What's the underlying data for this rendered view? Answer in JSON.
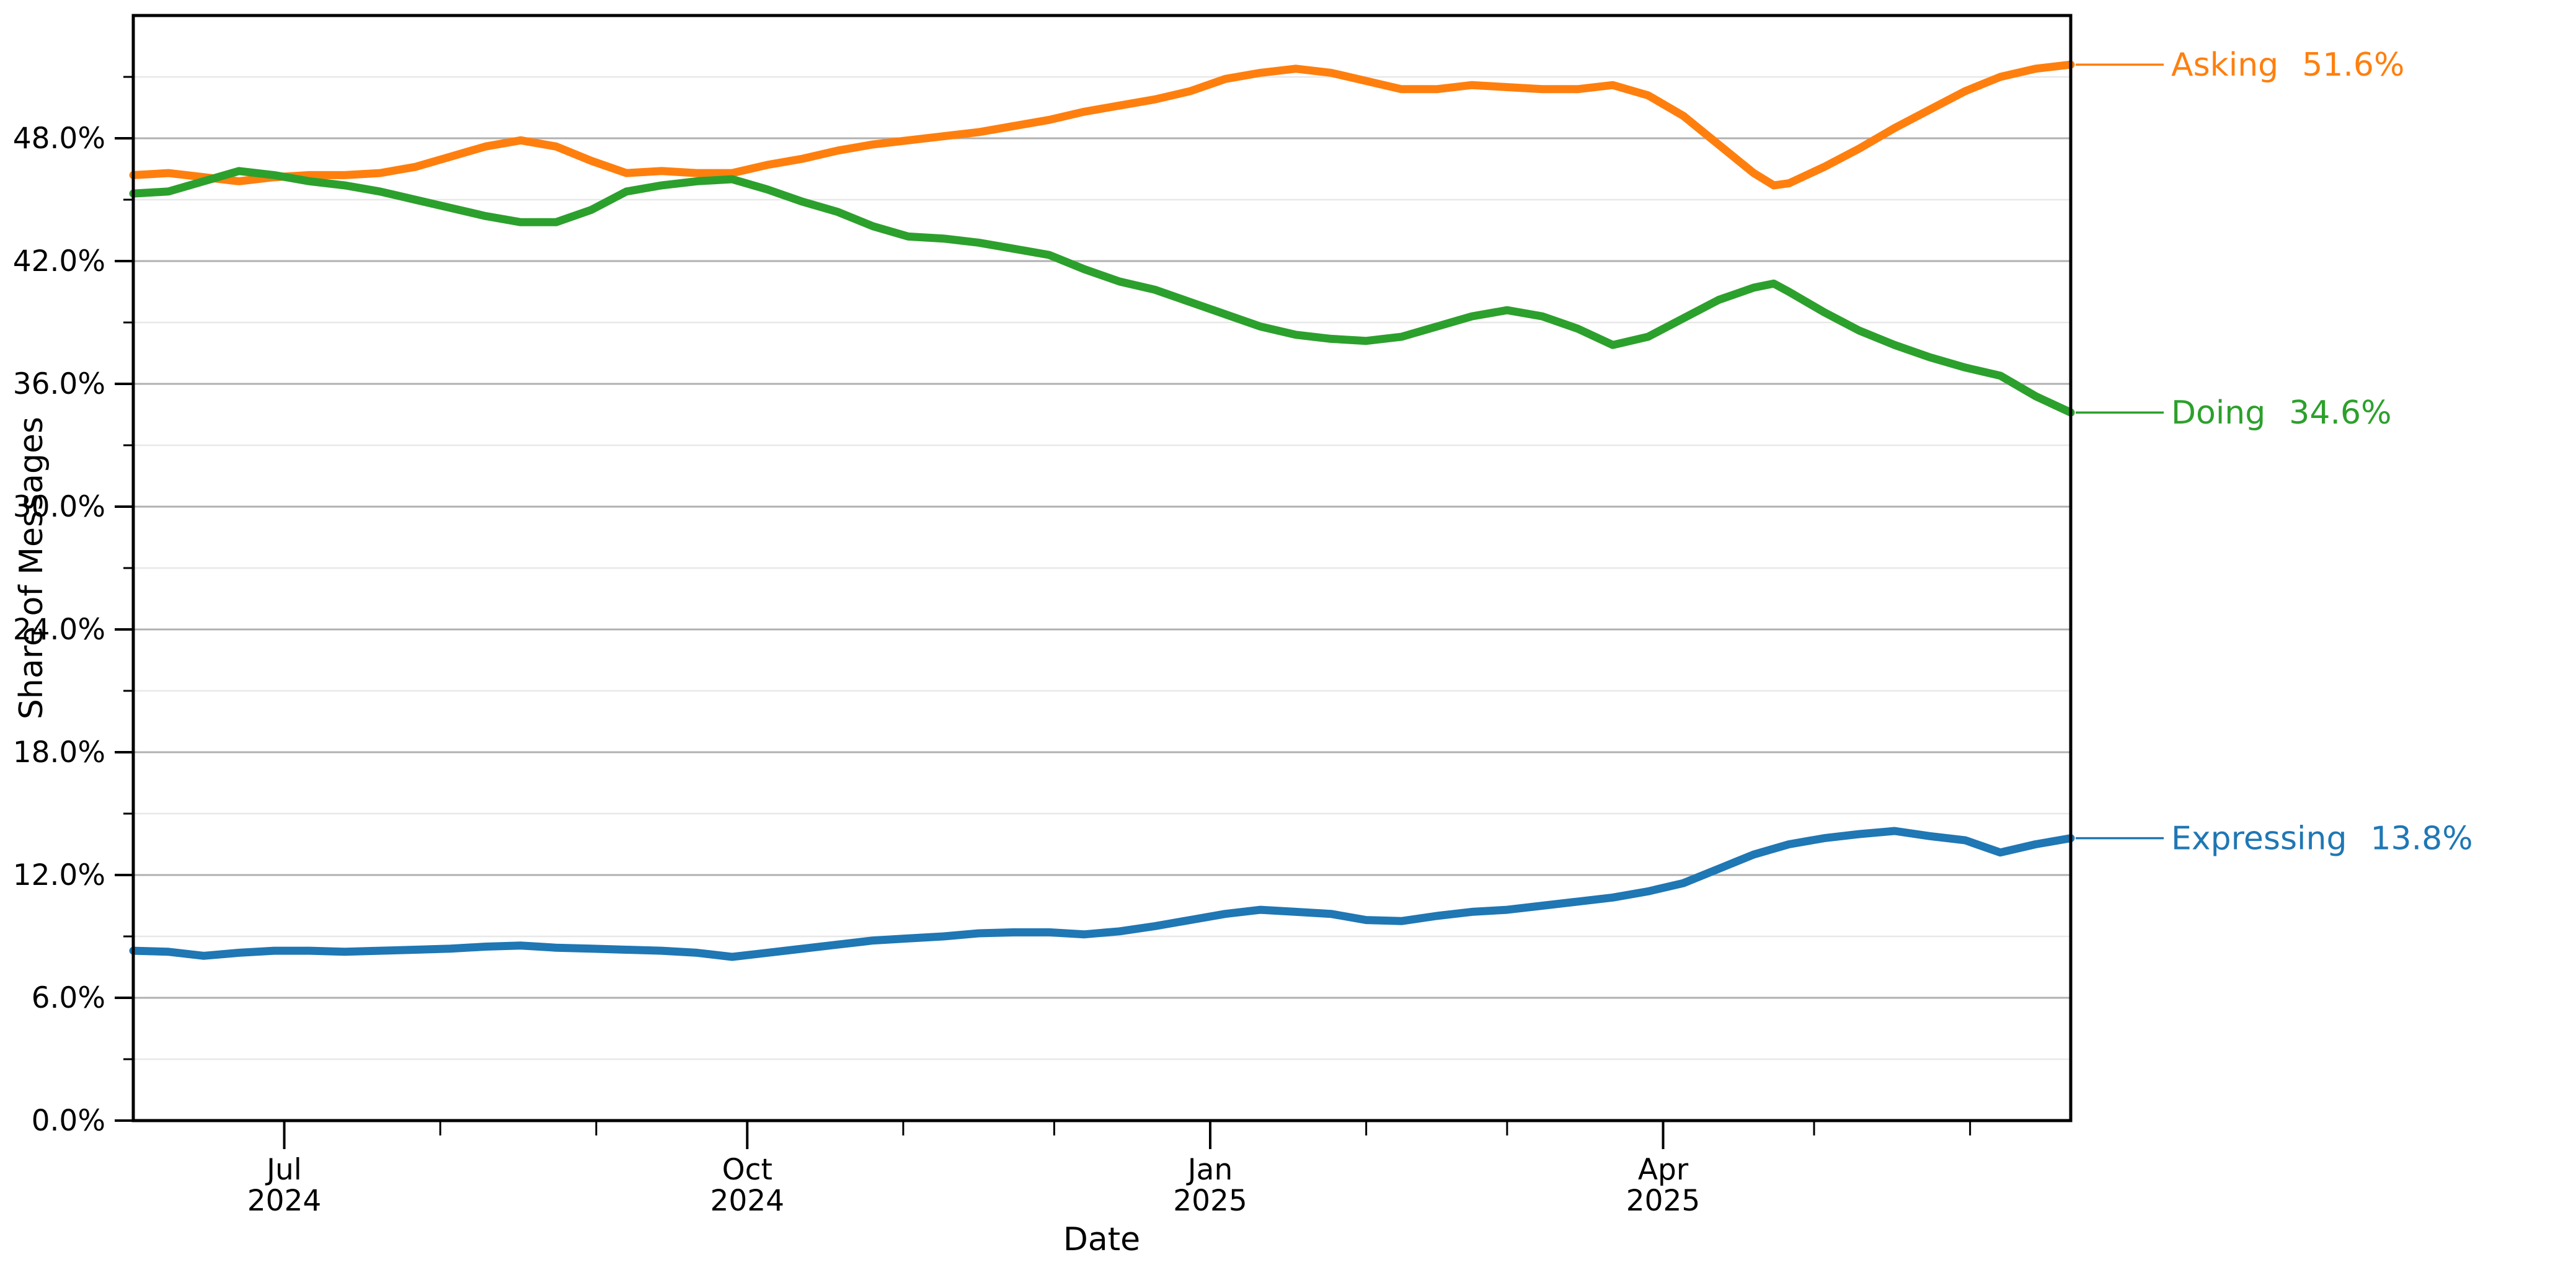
{
  "chart_data": {
    "type": "line",
    "title": "",
    "xlabel": "Date",
    "ylabel": "Share of Messages",
    "ylim": [
      0,
      54
    ],
    "x_domain": [
      "2024-06-01",
      "2025-06-21"
    ],
    "grid": "horizontal-only, major and minor",
    "legend_position": "right-edge-annotations",
    "y_major_ticks": {
      "values": [
        0,
        6,
        12,
        18,
        24,
        30,
        36,
        42,
        48
      ],
      "labels": [
        "0.0%",
        "6.0%",
        "12.0%",
        "18.0%",
        "24.0%",
        "30.0%",
        "36.0%",
        "42.0%",
        "48.0%"
      ]
    },
    "y_minor_ticks": [
      3,
      9,
      15,
      21,
      27,
      33,
      39,
      45,
      51
    ],
    "x_major_ticks": [
      {
        "date": "2024-07-01",
        "line1": "Jul",
        "line2": "2024"
      },
      {
        "date": "2024-10-01",
        "line1": "Oct",
        "line2": "2024"
      },
      {
        "date": "2025-01-01",
        "line1": "Jan",
        "line2": "2025"
      },
      {
        "date": "2025-04-01",
        "line1": "Apr",
        "line2": "2025"
      }
    ],
    "x_minor_ticks": [
      "2024-08-01",
      "2024-09-01",
      "2024-11-01",
      "2024-12-01",
      "2025-02-01",
      "2025-03-01",
      "2025-05-01",
      "2025-06-01"
    ],
    "series": [
      {
        "name": "Asking",
        "end_label": "51.6%",
        "color": "#ff7f0e",
        "points": [
          [
            "2024-06-01",
            46.2
          ],
          [
            "2024-06-08",
            46.3
          ],
          [
            "2024-06-15",
            46.1
          ],
          [
            "2024-06-22",
            45.9
          ],
          [
            "2024-06-29",
            46.1
          ],
          [
            "2024-07-06",
            46.2
          ],
          [
            "2024-07-13",
            46.2
          ],
          [
            "2024-07-20",
            46.3
          ],
          [
            "2024-07-27",
            46.6
          ],
          [
            "2024-08-03",
            47.1
          ],
          [
            "2024-08-10",
            47.6
          ],
          [
            "2024-08-17",
            47.9
          ],
          [
            "2024-08-24",
            47.6
          ],
          [
            "2024-08-31",
            46.9
          ],
          [
            "2024-09-07",
            46.3
          ],
          [
            "2024-09-14",
            46.4
          ],
          [
            "2024-09-21",
            46.3
          ],
          [
            "2024-09-28",
            46.3
          ],
          [
            "2024-10-05",
            46.7
          ],
          [
            "2024-10-12",
            47.0
          ],
          [
            "2024-10-19",
            47.4
          ],
          [
            "2024-10-26",
            47.7
          ],
          [
            "2024-11-02",
            47.9
          ],
          [
            "2024-11-09",
            48.1
          ],
          [
            "2024-11-16",
            48.3
          ],
          [
            "2024-11-23",
            48.6
          ],
          [
            "2024-11-30",
            48.9
          ],
          [
            "2024-12-07",
            49.3
          ],
          [
            "2024-12-14",
            49.6
          ],
          [
            "2024-12-21",
            49.9
          ],
          [
            "2024-12-28",
            50.3
          ],
          [
            "2025-01-04",
            50.9
          ],
          [
            "2025-01-11",
            51.2
          ],
          [
            "2025-01-18",
            51.4
          ],
          [
            "2025-01-25",
            51.2
          ],
          [
            "2025-02-01",
            50.8
          ],
          [
            "2025-02-08",
            50.4
          ],
          [
            "2025-02-15",
            50.4
          ],
          [
            "2025-02-22",
            50.6
          ],
          [
            "2025-03-01",
            50.5
          ],
          [
            "2025-03-08",
            50.4
          ],
          [
            "2025-03-15",
            50.4
          ],
          [
            "2025-03-22",
            50.6
          ],
          [
            "2025-03-29",
            50.1
          ],
          [
            "2025-04-05",
            49.1
          ],
          [
            "2025-04-12",
            47.7
          ],
          [
            "2025-04-19",
            46.3
          ],
          [
            "2025-04-23",
            45.7
          ],
          [
            "2025-04-26",
            45.8
          ],
          [
            "2025-05-03",
            46.6
          ],
          [
            "2025-05-10",
            47.5
          ],
          [
            "2025-05-17",
            48.5
          ],
          [
            "2025-05-24",
            49.4
          ],
          [
            "2025-05-31",
            50.3
          ],
          [
            "2025-06-07",
            51.0
          ],
          [
            "2025-06-14",
            51.4
          ],
          [
            "2025-06-21",
            51.6
          ]
        ]
      },
      {
        "name": "Doing",
        "end_label": "34.6%",
        "color": "#2ca02c",
        "points": [
          [
            "2024-06-01",
            45.3
          ],
          [
            "2024-06-08",
            45.4
          ],
          [
            "2024-06-15",
            45.9
          ],
          [
            "2024-06-22",
            46.4
          ],
          [
            "2024-06-29",
            46.2
          ],
          [
            "2024-07-06",
            45.9
          ],
          [
            "2024-07-13",
            45.7
          ],
          [
            "2024-07-20",
            45.4
          ],
          [
            "2024-07-27",
            45.0
          ],
          [
            "2024-08-03",
            44.6
          ],
          [
            "2024-08-10",
            44.2
          ],
          [
            "2024-08-17",
            43.9
          ],
          [
            "2024-08-24",
            43.9
          ],
          [
            "2024-08-31",
            44.5
          ],
          [
            "2024-09-07",
            45.4
          ],
          [
            "2024-09-14",
            45.7
          ],
          [
            "2024-09-21",
            45.9
          ],
          [
            "2024-09-28",
            46.0
          ],
          [
            "2024-10-05",
            45.5
          ],
          [
            "2024-10-12",
            44.9
          ],
          [
            "2024-10-19",
            44.4
          ],
          [
            "2024-10-26",
            43.7
          ],
          [
            "2024-11-02",
            43.2
          ],
          [
            "2024-11-09",
            43.1
          ],
          [
            "2024-11-16",
            42.9
          ],
          [
            "2024-11-23",
            42.6
          ],
          [
            "2024-11-30",
            42.3
          ],
          [
            "2024-12-07",
            41.6
          ],
          [
            "2024-12-14",
            41.0
          ],
          [
            "2024-12-21",
            40.6
          ],
          [
            "2024-12-28",
            40.0
          ],
          [
            "2025-01-04",
            39.4
          ],
          [
            "2025-01-11",
            38.8
          ],
          [
            "2025-01-18",
            38.4
          ],
          [
            "2025-01-25",
            38.2
          ],
          [
            "2025-02-01",
            38.1
          ],
          [
            "2025-02-08",
            38.3
          ],
          [
            "2025-02-15",
            38.8
          ],
          [
            "2025-02-22",
            39.3
          ],
          [
            "2025-03-01",
            39.6
          ],
          [
            "2025-03-08",
            39.3
          ],
          [
            "2025-03-15",
            38.7
          ],
          [
            "2025-03-22",
            37.9
          ],
          [
            "2025-03-29",
            38.3
          ],
          [
            "2025-04-05",
            39.2
          ],
          [
            "2025-04-12",
            40.1
          ],
          [
            "2025-04-19",
            40.7
          ],
          [
            "2025-04-23",
            40.9
          ],
          [
            "2025-04-26",
            40.5
          ],
          [
            "2025-05-03",
            39.5
          ],
          [
            "2025-05-10",
            38.6
          ],
          [
            "2025-05-17",
            37.9
          ],
          [
            "2025-05-24",
            37.3
          ],
          [
            "2025-05-31",
            36.8
          ],
          [
            "2025-06-07",
            36.4
          ],
          [
            "2025-06-14",
            35.4
          ],
          [
            "2025-06-21",
            34.6
          ]
        ]
      },
      {
        "name": "Expressing",
        "end_label": "13.8%",
        "color": "#1f77b4",
        "points": [
          [
            "2024-06-01",
            8.3
          ],
          [
            "2024-06-08",
            8.25
          ],
          [
            "2024-06-15",
            8.05
          ],
          [
            "2024-06-22",
            8.2
          ],
          [
            "2024-06-29",
            8.3
          ],
          [
            "2024-07-06",
            8.3
          ],
          [
            "2024-07-13",
            8.25
          ],
          [
            "2024-07-20",
            8.3
          ],
          [
            "2024-07-27",
            8.35
          ],
          [
            "2024-08-03",
            8.4
          ],
          [
            "2024-08-10",
            8.5
          ],
          [
            "2024-08-17",
            8.55
          ],
          [
            "2024-08-24",
            8.45
          ],
          [
            "2024-08-31",
            8.4
          ],
          [
            "2024-09-07",
            8.35
          ],
          [
            "2024-09-14",
            8.3
          ],
          [
            "2024-09-21",
            8.2
          ],
          [
            "2024-09-28",
            8.0
          ],
          [
            "2024-10-05",
            8.2
          ],
          [
            "2024-10-12",
            8.4
          ],
          [
            "2024-10-19",
            8.6
          ],
          [
            "2024-10-26",
            8.8
          ],
          [
            "2024-11-02",
            8.9
          ],
          [
            "2024-11-09",
            9.0
          ],
          [
            "2024-11-16",
            9.15
          ],
          [
            "2024-11-23",
            9.2
          ],
          [
            "2024-11-30",
            9.2
          ],
          [
            "2024-12-07",
            9.1
          ],
          [
            "2024-12-14",
            9.25
          ],
          [
            "2024-12-21",
            9.5
          ],
          [
            "2024-12-28",
            9.8
          ],
          [
            "2025-01-04",
            10.1
          ],
          [
            "2025-01-11",
            10.3
          ],
          [
            "2025-01-18",
            10.2
          ],
          [
            "2025-01-25",
            10.1
          ],
          [
            "2025-02-01",
            9.8
          ],
          [
            "2025-02-08",
            9.75
          ],
          [
            "2025-02-15",
            10.0
          ],
          [
            "2025-02-22",
            10.2
          ],
          [
            "2025-03-01",
            10.3
          ],
          [
            "2025-03-08",
            10.5
          ],
          [
            "2025-03-15",
            10.7
          ],
          [
            "2025-03-22",
            10.9
          ],
          [
            "2025-03-29",
            11.2
          ],
          [
            "2025-04-05",
            11.6
          ],
          [
            "2025-04-12",
            12.3
          ],
          [
            "2025-04-19",
            13.0
          ],
          [
            "2025-04-26",
            13.5
          ],
          [
            "2025-05-03",
            13.8
          ],
          [
            "2025-05-10",
            14.0
          ],
          [
            "2025-05-17",
            14.15
          ],
          [
            "2025-05-24",
            13.9
          ],
          [
            "2025-05-31",
            13.7
          ],
          [
            "2025-06-07",
            13.1
          ],
          [
            "2025-06-14",
            13.5
          ],
          [
            "2025-06-21",
            13.8
          ]
        ]
      }
    ],
    "colors": {
      "grid_major": "#b0b0b0",
      "grid_minor": "#e8e8e8",
      "axis": "#000000"
    }
  }
}
